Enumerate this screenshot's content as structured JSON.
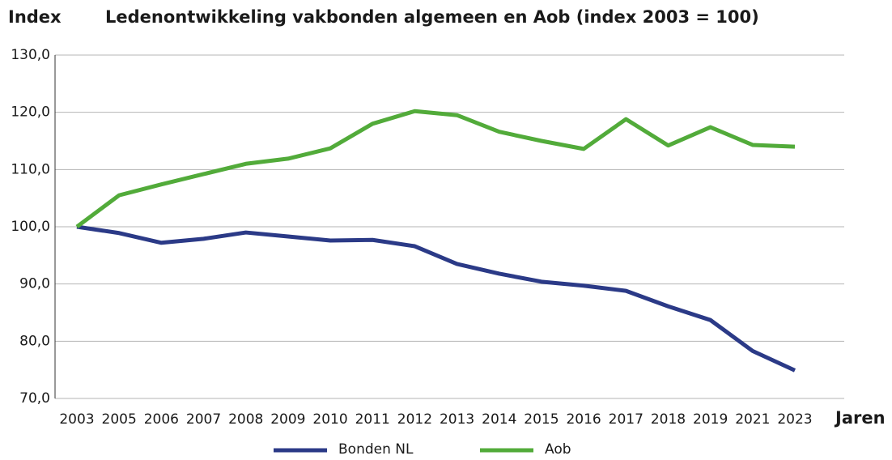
{
  "chart_data": {
    "type": "line",
    "title": "Ledenontwikkeling vakbonden algemeen en Aob (index 2003 = 100)",
    "y_label": "Index",
    "x_label": "Jaren",
    "categories": [
      "2003",
      "2005",
      "2006",
      "2007",
      "2008",
      "2009",
      "2010",
      "2011",
      "2012",
      "2013",
      "2014",
      "2015",
      "2016",
      "2017",
      "2018",
      "2019",
      "2021",
      "2023"
    ],
    "series": [
      {
        "name": "Bonden NL",
        "color": "#2b3a87",
        "values": [
          100,
          98.9,
          97.2,
          97.9,
          99.0,
          98.3,
          97.6,
          97.7,
          96.6,
          93.5,
          91.8,
          90.4,
          89.7,
          88.8,
          86.1,
          83.7,
          78.3,
          74.9
        ]
      },
      {
        "name": "Aob",
        "color": "#52ab3a",
        "values": [
          100,
          105.5,
          107.4,
          109.2,
          111.0,
          111.9,
          113.7,
          118.0,
          120.2,
          119.5,
          116.6,
          115.0,
          113.6,
          118.8,
          114.2,
          117.4,
          114.3,
          114.0
        ]
      }
    ],
    "ylim": [
      70,
      130
    ],
    "yticks": [
      {
        "value": 70,
        "label": "70,0"
      },
      {
        "value": 80,
        "label": "80,0"
      },
      {
        "value": 90,
        "label": "90,0"
      },
      {
        "value": 100,
        "label": "100,0"
      },
      {
        "value": 110,
        "label": "110,0"
      },
      {
        "value": 120,
        "label": "120,0"
      },
      {
        "value": 130,
        "label": "130,0"
      }
    ],
    "grid": true,
    "legend": "bottom"
  }
}
